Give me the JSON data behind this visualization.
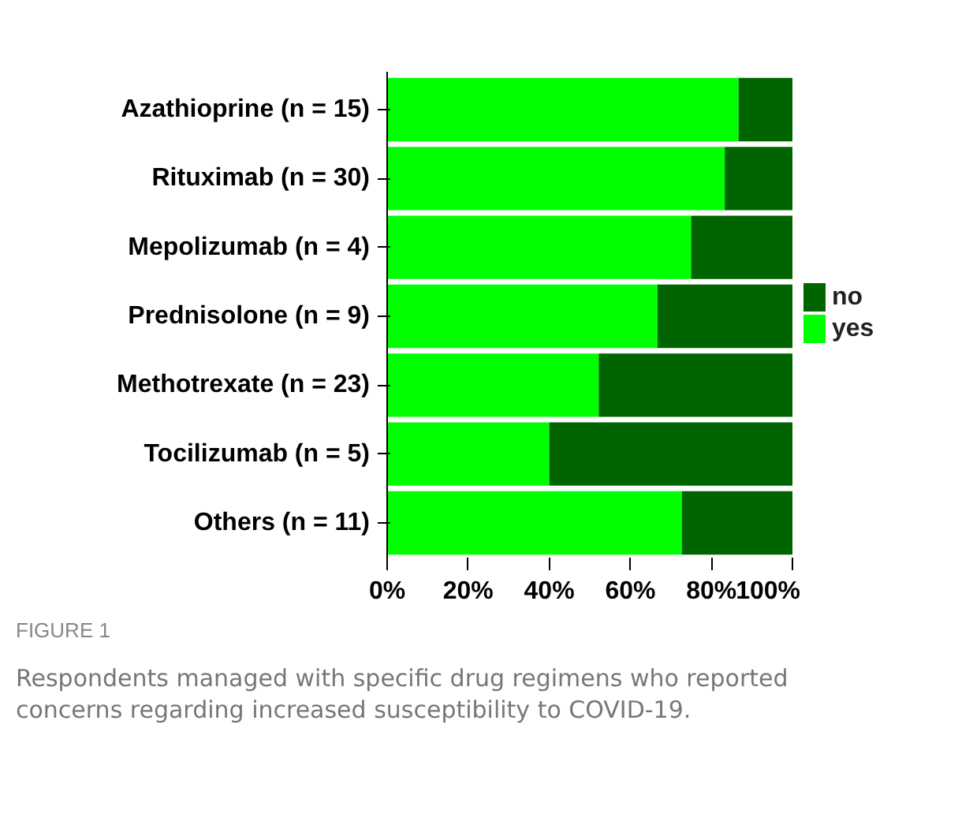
{
  "chart_data": {
    "type": "bar",
    "orientation": "horizontal",
    "stacked": true,
    "categories": [
      "Azathioprine (n = 15)",
      "Rituximab (n = 30)",
      "Mepolizumab (n = 4)",
      "Prednisolone (n = 9)",
      "Methotrexate (n = 23)",
      "Tocilizumab (n = 5)",
      "Others (n = 11)"
    ],
    "series": [
      {
        "name": "yes",
        "color": "#00ff00",
        "values": [
          86.7,
          83.3,
          75,
          66.7,
          52.2,
          40,
          72.7
        ]
      },
      {
        "name": "no",
        "color": "#006400",
        "values": [
          13.3,
          16.7,
          25,
          33.3,
          47.8,
          60,
          27.3
        ]
      }
    ],
    "xlim": [
      0,
      100
    ],
    "xticks": [
      {
        "value": 0,
        "label": "0%"
      },
      {
        "value": 20,
        "label": "20%"
      },
      {
        "value": 40,
        "label": "40%"
      },
      {
        "value": 60,
        "label": "60%"
      },
      {
        "value": 80,
        "label": "80%"
      },
      {
        "value": 100,
        "label": "100%"
      }
    ],
    "grid": false,
    "legend": "right",
    "annotations": [
      "FIGURE 1",
      "Respondents managed with specific drug regimens who reported concerns regarding increased susceptibility to COVID-19."
    ]
  }
}
